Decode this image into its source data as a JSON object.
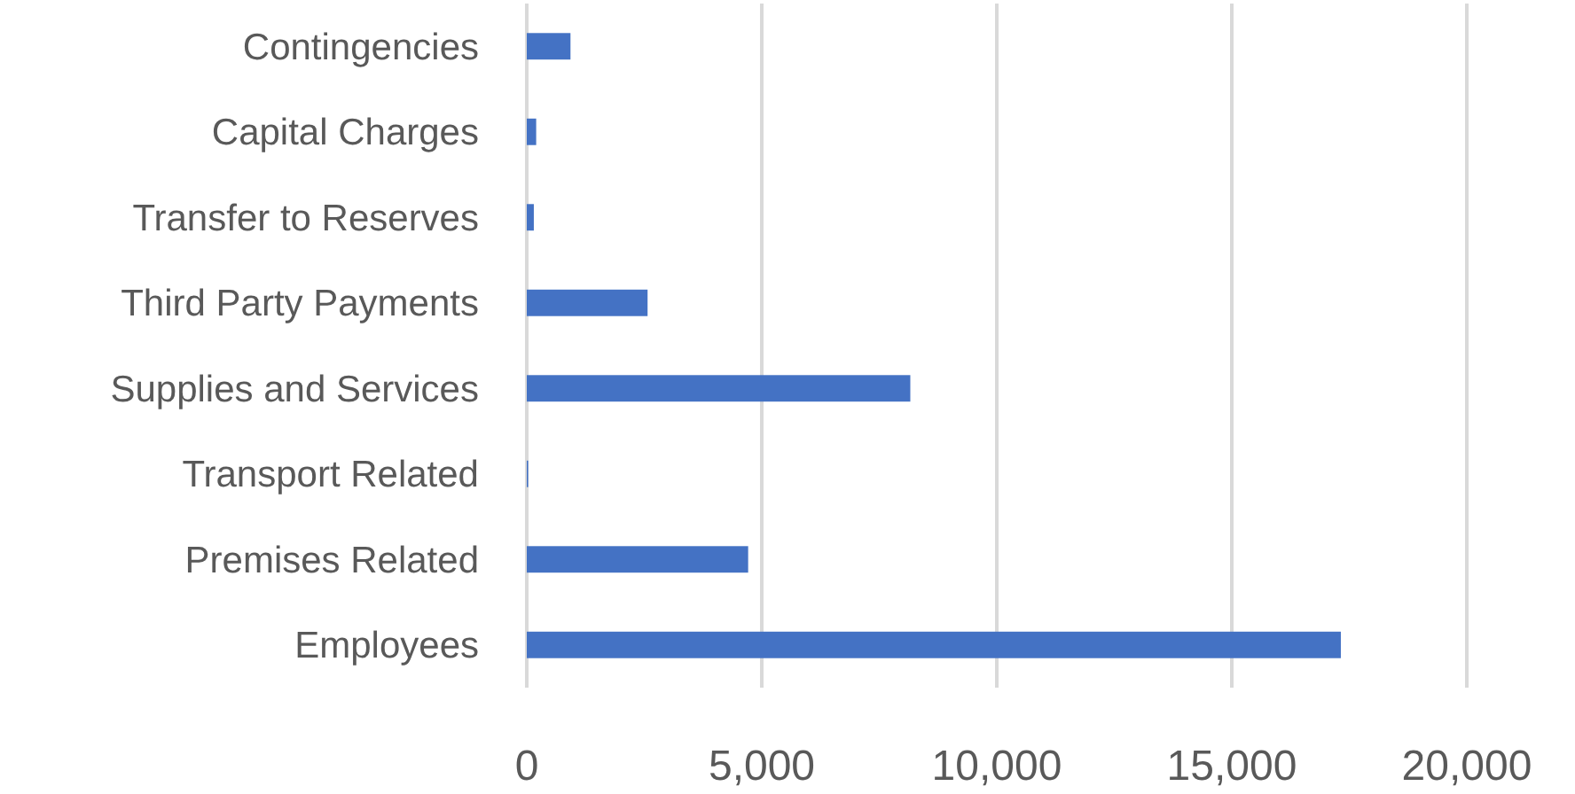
{
  "chart_data": {
    "type": "bar",
    "orientation": "horizontal",
    "categories": [
      "Contingencies",
      "Capital Charges",
      "Transfer to Reserves",
      "Third Party Payments",
      "Supplies and Services",
      "Transport Related",
      "Premises Related",
      "Employees"
    ],
    "values": [
      930,
      200,
      150,
      2570,
      8160,
      30,
      4710,
      17320
    ],
    "color": "#4472c4",
    "xlim": [
      0,
      20000
    ],
    "xticks": [
      {
        "value": 0,
        "label": "0"
      },
      {
        "value": 5000,
        "label": "5,000"
      },
      {
        "value": 10000,
        "label": "10,000"
      },
      {
        "value": 15000,
        "label": "15,000"
      },
      {
        "value": 20000,
        "label": "20,000"
      }
    ],
    "grid": "x"
  }
}
